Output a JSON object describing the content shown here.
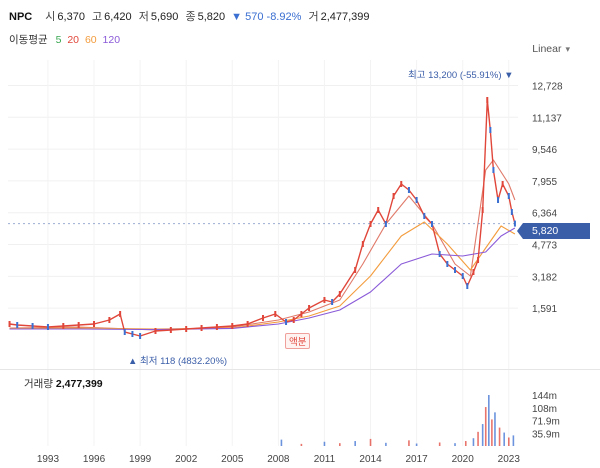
{
  "header": {
    "name": "NPC",
    "open_label": "시",
    "open_value": "6,370",
    "high_label": "고",
    "high_value": "6,420",
    "low_label": "저",
    "low_value": "5,690",
    "close_label": "종",
    "close_value": "5,820",
    "change_text": "▼ 570 -8.92%",
    "volume_label": "거",
    "volume_value": "2,477,399"
  },
  "moving_average": {
    "title": "이동평균",
    "periods": [
      {
        "label": "5",
        "color": "#3aa852"
      },
      {
        "label": "20",
        "color": "#e0463a"
      },
      {
        "label": "60",
        "color": "#f39c3d"
      },
      {
        "label": "120",
        "color": "#8a5ad8"
      }
    ]
  },
  "scale_selector": {
    "label": "Linear",
    "icon": "chevron-down-icon"
  },
  "current_price_tag": "5,820",
  "annotations": {
    "high": "최고 13,200 (-55.91%) ▼",
    "low": "▲ 최저 118 (4832.20%)",
    "split_tag": "액분"
  },
  "volume_panel": {
    "label": "거래량",
    "value": "2,477,399"
  },
  "colors": {
    "up": "#e0463a",
    "down": "#3b6fd1",
    "accent": "#3b5ea8"
  },
  "chart_data": {
    "type": "line",
    "title": "",
    "price_axis_ticks": [
      "12,728",
      "11,137",
      "9,546",
      "7,955",
      "6,364",
      "4,773",
      "3,182",
      "1,591"
    ],
    "price_axis_values": [
      12728,
      11137,
      9546,
      7955,
      6364,
      4773,
      3182,
      1591
    ],
    "volume_axis_ticks": [
      "144m",
      "108m",
      "71.9m",
      "35.9m"
    ],
    "x_axis_ticks": [
      "1993",
      "1996",
      "1999",
      "2002",
      "2005",
      "2008",
      "2011",
      "2014",
      "2017",
      "2020",
      "2023"
    ],
    "x_axis_values": [
      1993,
      1996,
      1999,
      2002,
      2005,
      2008,
      2011,
      2014,
      2017,
      2020,
      2023
    ],
    "ylim": [
      0,
      13500
    ],
    "xlim": [
      1990.4,
      2023.6
    ],
    "series": [
      {
        "name": "종가",
        "color": "#e0463a",
        "x": [
          1990.5,
          1991,
          1992,
          1993,
          1994,
          1995,
          1996,
          1997,
          1997.7,
          1998,
          1998.5,
          1999,
          2000,
          2001,
          2002,
          2003,
          2004,
          2005,
          2006,
          2007,
          2007.8,
          2008.5,
          2009,
          2009.5,
          2010,
          2011,
          2011.5,
          2012,
          2013,
          2013.5,
          2014,
          2014.5,
          2015,
          2015.5,
          2016,
          2016.5,
          2017,
          2017.5,
          2018,
          2018.5,
          2019,
          2019.5,
          2020,
          2020.3,
          2020.7,
          2021,
          2021.3,
          2021.6,
          2021.8,
          2022,
          2022.3,
          2022.6,
          2023,
          2023.2,
          2023.4
        ],
        "y": [
          800,
          750,
          700,
          650,
          700,
          750,
          800,
          1000,
          1300,
          400,
          300,
          200,
          450,
          500,
          550,
          600,
          650,
          700,
          800,
          1100,
          1300,
          900,
          1000,
          1300,
          1600,
          2000,
          1900,
          2300,
          3500,
          4800,
          5800,
          6500,
          5800,
          7200,
          7800,
          7500,
          7000,
          6200,
          5800,
          4300,
          3800,
          3500,
          3200,
          2700,
          3400,
          4000,
          6500,
          12000,
          10500,
          8500,
          7000,
          7800,
          7200,
          6400,
          5820
        ]
      },
      {
        "name": "MA20",
        "color": "#e07a6a",
        "x": [
          1990.5,
          1995,
          2000,
          2005,
          2008,
          2010,
          2012,
          2013.5,
          2015,
          2016.5,
          2018,
          2019.5,
          2020.5,
          2021.5,
          2022,
          2023,
          2023.4
        ],
        "y": [
          600,
          650,
          500,
          650,
          1000,
          1400,
          2000,
          3800,
          5800,
          7200,
          5800,
          3800,
          3200,
          8500,
          9000,
          7800,
          7000
        ]
      },
      {
        "name": "MA60",
        "color": "#f39c3d",
        "x": [
          1990.5,
          1995,
          2000,
          2005,
          2008,
          2010,
          2012,
          2014,
          2016,
          2017.5,
          2019,
          2020.5,
          2021.5,
          2022.5,
          2023.4
        ],
        "y": [
          580,
          600,
          550,
          600,
          900,
          1200,
          1700,
          3200,
          5200,
          5900,
          4800,
          3500,
          4600,
          5700,
          5300
        ]
      },
      {
        "name": "MA120",
        "color": "#8a5ad8",
        "x": [
          1990.5,
          1995,
          2000,
          2005,
          2008,
          2010,
          2012,
          2014,
          2016,
          2018,
          2020,
          2021.5,
          2022.5,
          2023.4
        ],
        "y": [
          550,
          550,
          520,
          580,
          800,
          1100,
          1500,
          2400,
          3800,
          4300,
          4200,
          4400,
          5200,
          5600
        ]
      }
    ],
    "volume_bars_m": {
      "x": [
        2008.2,
        2009.5,
        2011,
        2012,
        2013,
        2014,
        2015,
        2016.5,
        2017,
        2018.5,
        2019.5,
        2020.2,
        2020.7,
        2021,
        2021.3,
        2021.5,
        2021.7,
        2021.9,
        2022.1,
        2022.4,
        2022.7,
        2023,
        2023.3
      ],
      "y": [
        18,
        6,
        12,
        8,
        14,
        20,
        9,
        16,
        7,
        10,
        8,
        14,
        22,
        40,
        62,
        110,
        144,
        75,
        95,
        52,
        38,
        24,
        30
      ]
    }
  }
}
